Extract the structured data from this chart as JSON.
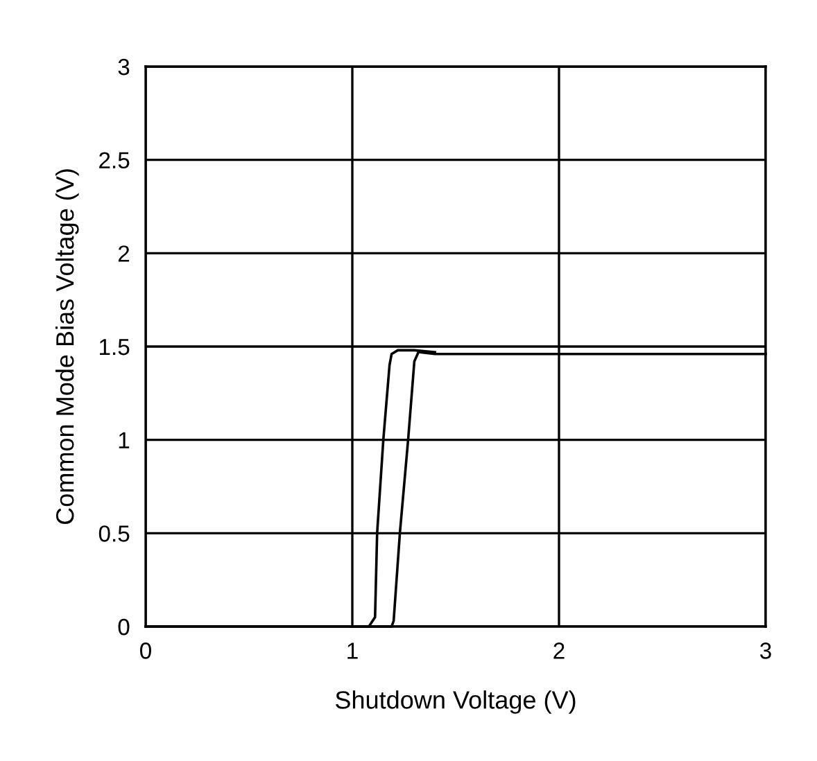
{
  "chart_data": {
    "type": "line",
    "xlabel": "Shutdown Voltage (V)",
    "ylabel": "Common Mode Bias Voltage (V)",
    "xlim": [
      0,
      3
    ],
    "ylim": [
      0,
      3
    ],
    "xticks": [
      0,
      1,
      2,
      3
    ],
    "yticks": [
      0,
      0.5,
      1,
      1.5,
      2,
      2.5,
      3
    ],
    "grid": true,
    "marker": "none",
    "line_style": "solid",
    "series": [
      {
        "color": "#000000",
        "x": [
          0,
          1.0,
          1.15,
          1.19,
          1.2,
          1.23,
          1.27,
          1.3,
          1.32,
          1.4,
          3
        ],
        "values": [
          0,
          0,
          0,
          0,
          0.03,
          0.5,
          1.0,
          1.42,
          1.47,
          1.46,
          1.46
        ]
      },
      {
        "color": "#000000",
        "x": [
          1.4,
          1.3,
          1.22,
          1.19,
          1.18,
          1.15,
          1.12,
          1.11,
          1.08,
          1.03,
          1.0
        ],
        "values": [
          1.47,
          1.48,
          1.48,
          1.46,
          1.4,
          1.0,
          0.5,
          0.05,
          0,
          0,
          0
        ]
      }
    ]
  }
}
